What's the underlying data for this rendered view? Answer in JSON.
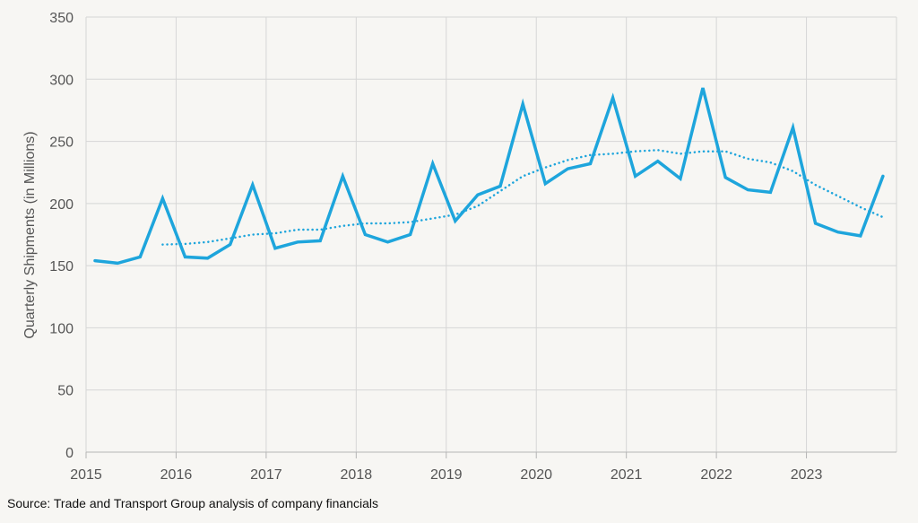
{
  "chart_data": {
    "type": "line",
    "xlabel": "",
    "ylabel": "Quarterly Shipments (in Millions)",
    "ylim": [
      0,
      350
    ],
    "xlim": [
      2015,
      2024
    ],
    "yticks": [
      0,
      50,
      100,
      150,
      200,
      250,
      300,
      350
    ],
    "xticks": [
      2015,
      2016,
      2017,
      2018,
      2019,
      2020,
      2021,
      2022,
      2023
    ],
    "grid": true,
    "legend": "none",
    "series": [
      {
        "style": "solid",
        "color": "#1ea5dc",
        "x": [
          2015.1,
          2015.35,
          2015.6,
          2015.85,
          2016.1,
          2016.35,
          2016.6,
          2016.85,
          2017.1,
          2017.35,
          2017.6,
          2017.85,
          2018.1,
          2018.35,
          2018.6,
          2018.85,
          2019.1,
          2019.35,
          2019.6,
          2019.85,
          2020.1,
          2020.35,
          2020.6,
          2020.85,
          2021.1,
          2021.35,
          2021.6,
          2021.85,
          2022.1,
          2022.35,
          2022.6,
          2022.85,
          2023.1,
          2023.35,
          2023.6,
          2023.85
        ],
        "values": [
          154,
          152,
          157,
          204,
          157,
          156,
          167,
          215,
          164,
          169,
          170,
          222,
          175,
          169,
          175,
          232,
          186,
          207,
          214,
          280,
          216,
          228,
          232,
          285,
          222,
          234,
          220,
          293,
          221,
          211,
          209,
          261,
          184,
          177,
          174,
          222
        ]
      },
      {
        "style": "dotted",
        "color": "#1ea5dc",
        "x": [
          2015.85,
          2016.1,
          2016.35,
          2016.6,
          2016.85,
          2017.1,
          2017.35,
          2017.6,
          2017.85,
          2018.1,
          2018.35,
          2018.6,
          2018.85,
          2019.1,
          2019.35,
          2019.6,
          2019.85,
          2020.1,
          2020.35,
          2020.6,
          2020.85,
          2021.1,
          2021.35,
          2021.6,
          2021.85,
          2022.1,
          2022.35,
          2022.6,
          2022.85,
          2023.1,
          2023.35,
          2023.6,
          2023.85
        ],
        "values": [
          167,
          167.5,
          169,
          172,
          175,
          176,
          179,
          179,
          182,
          184,
          184,
          185,
          188,
          191,
          198,
          210,
          222,
          229,
          235,
          239,
          240,
          242,
          243,
          240,
          242,
          242,
          236,
          233,
          226,
          215,
          206,
          197,
          189
        ]
      }
    ],
    "source": "Source: Trade and Transport Group analysis of company financials"
  }
}
